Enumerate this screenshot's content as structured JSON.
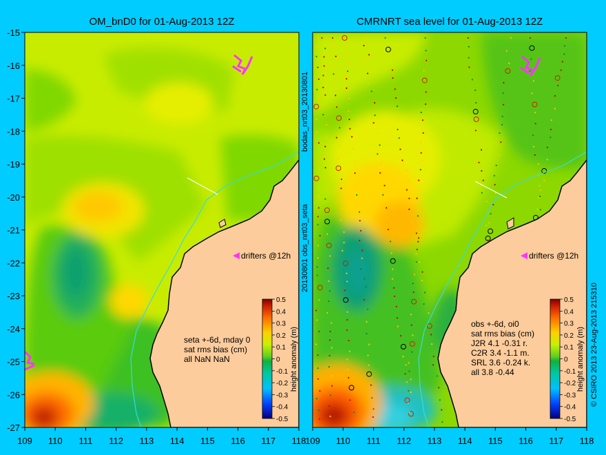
{
  "chart_data": [
    {
      "type": "heatmap",
      "title": "OM_bnD0 for 01-Aug-2013 12Z",
      "xlim": [
        109,
        118
      ],
      "ylim": [
        -27,
        -15
      ],
      "x_ticks": [
        "109",
        "110",
        "111",
        "112",
        "113",
        "114",
        "115",
        "116",
        "117",
        "118"
      ],
      "y_ticks": [
        "-15",
        "-16",
        "-17",
        "-18",
        "-19",
        "-20",
        "-21",
        "-22",
        "-23",
        "-24",
        "-25",
        "-26",
        "-27"
      ],
      "colorbar": {
        "label": "height anomaly (m)",
        "range": [
          -0.5,
          0.5
        ],
        "ticks": [
          "0.5",
          "0.4",
          "0.3",
          "0.2",
          "0.1",
          "0",
          "-0.1",
          "-0.2",
          "-0.3",
          "-0.4",
          "-0.5"
        ]
      },
      "annotation_lines": [
        "seta +-6d, mday 0",
        "sat rms bias (cm)",
        "all NaN NaN"
      ],
      "drifters_label": "drifters @12h",
      "features": [
        {
          "kind": "high",
          "x": 109.8,
          "y": -26.8,
          "value": 0.35
        },
        {
          "kind": "high",
          "x": 111.2,
          "y": -20.2,
          "value": 0.15
        },
        {
          "kind": "high",
          "x": 112.0,
          "y": -23.3,
          "value": 0.15
        },
        {
          "kind": "low",
          "x": 110.5,
          "y": -22.5,
          "value": -0.08
        },
        {
          "kind": "low",
          "x": 111.6,
          "y": -26.6,
          "value": -0.05
        }
      ]
    },
    {
      "type": "heatmap",
      "title": "CMRNRT sea level  for 01-Aug-2013 12Z",
      "xlim": [
        109,
        118
      ],
      "ylim": [
        -27,
        -15
      ],
      "x_ticks": [
        "109",
        "110",
        "111",
        "112",
        "113",
        "114",
        "115",
        "116",
        "117",
        "118"
      ],
      "colorbar": {
        "label": "height anomaly (m)",
        "range": [
          -0.5,
          0.5
        ],
        "ticks": [
          "0.5",
          "0.4",
          "0.3",
          "0.2",
          "0.1",
          "0",
          "-0.1",
          "-0.2",
          "-0.3",
          "-0.4",
          "-0.5"
        ]
      },
      "annotation_lines": [
        "obs +-6d, oi0",
        "sat rms bias (cm)",
        "J2R   4.1  -0.31 r.",
        "C2R   3.4  -1.1 m.",
        "SRL    3.6  -0.24 k.",
        "all    3.8  -0.44"
      ],
      "drifters_label": "drifters @12h",
      "features": [
        {
          "kind": "high",
          "x": 109.8,
          "y": -26.6,
          "value": 0.42
        },
        {
          "kind": "high",
          "x": 111.6,
          "y": -20.8,
          "value": 0.2
        },
        {
          "kind": "low",
          "x": 110.5,
          "y": -22.6,
          "value": -0.08
        },
        {
          "kind": "low",
          "x": 111.7,
          "y": -26.7,
          "value": -0.12
        }
      ]
    }
  ],
  "side_text": {
    "vertical_left_upper": "bodas_nrt03_20130801",
    "vertical_left_lower": "20130801 obs_nrt03_seta",
    "vertical_right": "© CSIRO 2013  23-Aug-2013 215310"
  },
  "colors": {
    "background": "#00ccff",
    "land": "#fccc9c",
    "coast": "#000000",
    "contour_200m": "#33dddd",
    "drifter": "#ff33ff"
  }
}
